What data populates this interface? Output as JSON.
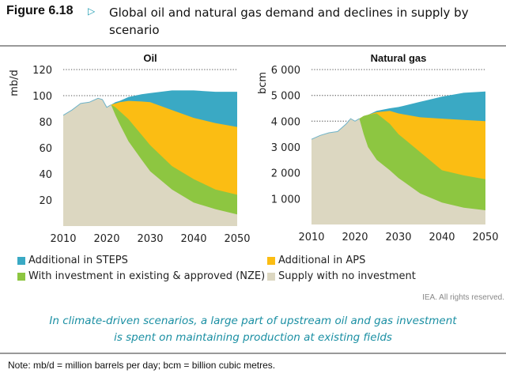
{
  "header": {
    "figure_label": "Figure 6.18",
    "arrow_icon": "triangle-right-icon",
    "title": "Global oil and natural gas demand and declines in supply by scenario"
  },
  "legend": [
    {
      "label": "Additional in STEPS",
      "color": "#3aa9c4"
    },
    {
      "label": "Additional in APS",
      "color": "#fbbd13"
    },
    {
      "label": "With investment in existing & approved (NZE)",
      "color": "#8dc641"
    },
    {
      "label": "Supply with no investment",
      "color": "#dcd7c1"
    }
  ],
  "credit": "IEA. All rights reserved.",
  "caption": {
    "line1": "In climate-driven scenarios, a large part of upstream oil and gas investment",
    "line2": "is spent on maintaining production at existing fields"
  },
  "note": "Note:  mb/d = million barrels per day; bcm = billion cubic metres.",
  "chart_data": [
    {
      "type": "area",
      "stacked_boundaries": true,
      "title": "Oil",
      "ylabel": "mb/d",
      "xlim": [
        2010,
        2050
      ],
      "ylim": [
        0,
        120
      ],
      "xticks": [
        "2010",
        "2020",
        "2030",
        "2040",
        "2050"
      ],
      "yticks": [
        "20",
        "40",
        "60",
        "80",
        "100",
        "120"
      ],
      "ytick_values": [
        20,
        40,
        60,
        80,
        100,
        120
      ],
      "grid": "dotted horizontal",
      "x": [
        2010,
        2012,
        2014,
        2016,
        2018,
        2019,
        2020,
        2021,
        2022,
        2023,
        2025,
        2028,
        2030,
        2035,
        2040,
        2045,
        2050
      ],
      "series": [
        {
          "name": "Additional in STEPS",
          "color": "#3aa9c4",
          "values": [
            85,
            89,
            94,
            95,
            98,
            97,
            91,
            93,
            95,
            96,
            99,
            101,
            102,
            104,
            104,
            103,
            103
          ]
        },
        {
          "name": "Additional in APS",
          "color": "#fbbd13",
          "values": [
            85,
            89,
            94,
            95,
            98,
            97,
            91,
            93,
            94,
            95,
            96,
            95.5,
            95,
            89,
            83,
            79,
            76
          ]
        },
        {
          "name": "With investment in existing & approved (NZE)",
          "color": "#8dc641",
          "values": [
            85,
            89,
            94,
            95,
            98,
            97,
            91,
            93,
            91,
            88,
            82,
            70,
            62,
            46,
            36,
            28,
            24
          ]
        },
        {
          "name": "Supply with no investment",
          "color": "#dcd7c1",
          "values": [
            85,
            89,
            94,
            95,
            98,
            97,
            91,
            93,
            85,
            78,
            65,
            51,
            42,
            28,
            18,
            13,
            9
          ]
        }
      ]
    },
    {
      "type": "area",
      "stacked_boundaries": true,
      "title": "Natural gas",
      "ylabel": "bcm",
      "xlim": [
        2010,
        2050
      ],
      "ylim": [
        0,
        6000
      ],
      "xticks": [
        "2010",
        "2020",
        "2030",
        "2040",
        "2050"
      ],
      "yticks": [
        "1 000",
        "2 000",
        "3 000",
        "4 000",
        "5 000",
        "6 000"
      ],
      "ytick_values": [
        1000,
        2000,
        3000,
        4000,
        5000,
        6000
      ],
      "grid": "dotted horizontal",
      "x": [
        2010,
        2012,
        2014,
        2016,
        2018,
        2019,
        2020,
        2021,
        2022,
        2023,
        2025,
        2028,
        2030,
        2035,
        2040,
        2045,
        2050
      ],
      "series": [
        {
          "name": "Additional in STEPS",
          "color": "#3aa9c4",
          "values": [
            3300,
            3450,
            3550,
            3600,
            3900,
            4100,
            4000,
            4100,
            4200,
            4250,
            4400,
            4500,
            4550,
            4750,
            4950,
            5100,
            5150
          ]
        },
        {
          "name": "Additional in APS",
          "color": "#fbbd13",
          "values": [
            3300,
            3450,
            3550,
            3600,
            3900,
            4100,
            4000,
            4100,
            4200,
            4250,
            4350,
            4400,
            4300,
            4150,
            4100,
            4050,
            4000
          ]
        },
        {
          "name": "With investment in existing & approved (NZE)",
          "color": "#8dc641",
          "values": [
            3300,
            3450,
            3550,
            3600,
            3900,
            4100,
            4000,
            4100,
            4200,
            4250,
            4300,
            3900,
            3500,
            2800,
            2100,
            1900,
            1750
          ]
        },
        {
          "name": "Supply with no investment",
          "color": "#dcd7c1",
          "values": [
            3300,
            3450,
            3550,
            3600,
            3900,
            4100,
            4000,
            4100,
            3500,
            3000,
            2500,
            2100,
            1800,
            1200,
            850,
            650,
            550
          ]
        }
      ]
    }
  ]
}
